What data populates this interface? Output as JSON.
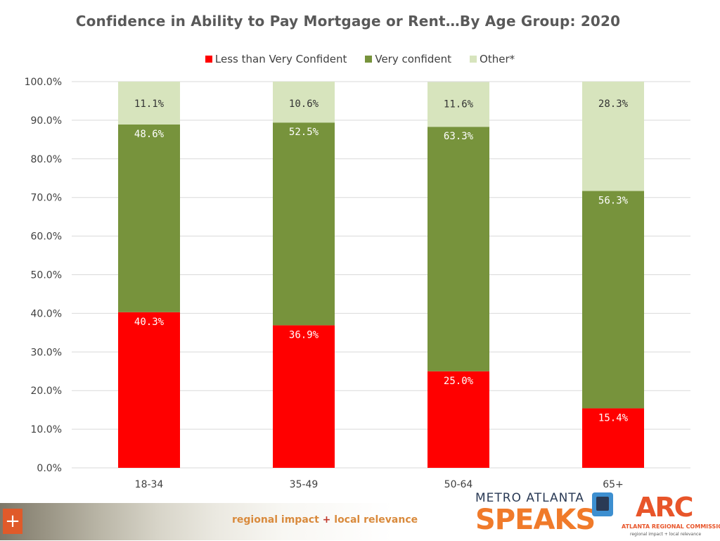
{
  "chart_data": {
    "type": "bar",
    "stacked": true,
    "title": "Confidence in Ability to Pay Mortgage or Rent…By Age Group: 2020",
    "categories": [
      "18-34",
      "35-49",
      "50-64",
      "65+"
    ],
    "series": [
      {
        "name": "Less than Very Confident",
        "color": "#ff0000",
        "values": [
          40.3,
          36.9,
          25.0,
          15.4
        ],
        "labels": [
          "40.3%",
          "36.9%",
          "25.0%",
          "15.4%"
        ]
      },
      {
        "name": "Very confident",
        "color": "#77933c",
        "values": [
          48.6,
          52.5,
          63.3,
          56.3
        ],
        "labels": [
          "48.6%",
          "52.5%",
          "63.3%",
          "56.3%"
        ]
      },
      {
        "name": "Other*",
        "color": "#d7e4bd",
        "values": [
          11.1,
          10.6,
          11.6,
          28.3
        ],
        "labels": [
          "11.1%",
          "10.6%",
          "11.6%",
          "28.3%"
        ]
      }
    ],
    "ylim": [
      0,
      100
    ],
    "y_ticks": [
      "0.0%",
      "10.0%",
      "20.0%",
      "30.0%",
      "40.0%",
      "50.0%",
      "60.0%",
      "70.0%",
      "80.0%",
      "90.0%",
      "100.0%"
    ],
    "grid": true,
    "legend_position": "top"
  },
  "footer": {
    "tagline_left": "regional impact",
    "tagline_plus": "+",
    "tagline_right": "local relevance",
    "plus_icon": "+",
    "metro_atlanta_line1": "METRO ATLANTA",
    "metro_atlanta_line2": "SPEAKS",
    "arc_mark": "ARC",
    "arc_name": "ATLANTA REGIONAL COMMISSION",
    "arc_sub": "regional impact + local relevance"
  }
}
